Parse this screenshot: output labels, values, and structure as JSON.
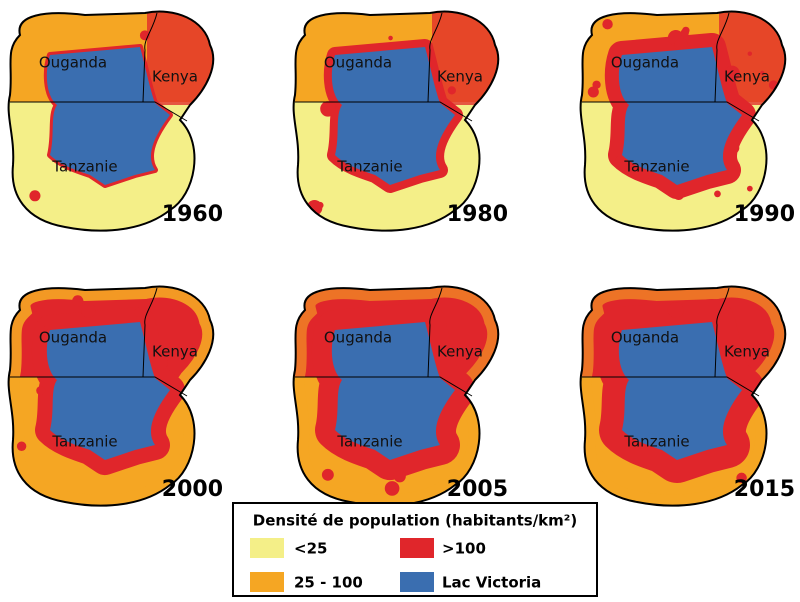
{
  "panels": [
    {
      "year": "1960",
      "labels": [
        "Ouganda",
        "Kenya",
        "Tanzanie"
      ]
    },
    {
      "year": "1980",
      "labels": [
        "Ouganda",
        "Kenya",
        "Tanzanie"
      ]
    },
    {
      "year": "1990",
      "labels": [
        "Ouganda",
        "Kenya",
        "Tanzanie"
      ]
    },
    {
      "year": "2000",
      "labels": [
        "Ouganda",
        "Kenya",
        "Tanzanie"
      ]
    },
    {
      "year": "2005",
      "labels": [
        "Ouganda",
        "Kenya",
        "Tanzanie"
      ]
    },
    {
      "year": "2015",
      "labels": [
        "Ouganda",
        "Kenya",
        "Tanzanie"
      ]
    }
  ],
  "legend": {
    "title": "Densité de population (habitants/km²)",
    "items": [
      {
        "label": "<25",
        "color": "#f4ef88"
      },
      {
        "label": ">100",
        "color": "#e0262b"
      },
      {
        "label": "25 - 100",
        "color": "#f5a623"
      },
      {
        "label": "Lac Victoria",
        "color": "#3a6eb0"
      }
    ]
  }
}
